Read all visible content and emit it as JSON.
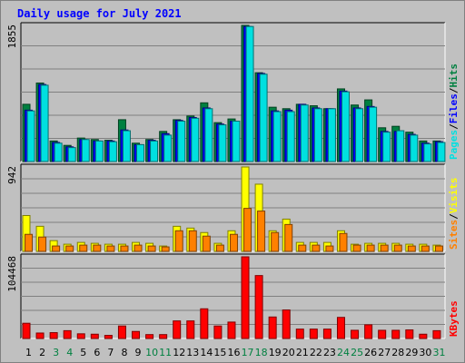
{
  "chart_data": {
    "title": "Daily usage for July 2021",
    "type": "bar",
    "days": [
      "1",
      "2",
      "3",
      "4",
      "5",
      "6",
      "7",
      "8",
      "9",
      "10",
      "11",
      "12",
      "13",
      "14",
      "15",
      "16",
      "17",
      "18",
      "19",
      "20",
      "21",
      "22",
      "23",
      "24",
      "25",
      "26",
      "27",
      "28",
      "29",
      "30",
      "31"
    ],
    "weekend_days": [
      "3",
      "4",
      "10",
      "11",
      "17",
      "18",
      "24",
      "25",
      "31"
    ],
    "panels": [
      {
        "id": "hits_files_pages",
        "ymax": 1855,
        "ymax_label": "1855",
        "legend": [
          "Pages",
          "/",
          "Files",
          "/",
          "Hits"
        ],
        "legend_colors": [
          "#00e0e0",
          "#000000",
          "#0000ff",
          "#000000",
          "#008040"
        ],
        "series": [
          {
            "name": "Hits",
            "color": "#008040",
            "values": [
              780,
              1070,
              280,
              220,
              320,
              300,
              290,
              570,
              250,
              300,
              410,
              570,
              620,
              800,
              530,
              580,
              1855,
              1210,
              740,
              720,
              780,
              760,
              720,
              990,
              770,
              840,
              460,
              480,
              400,
              280,
              280
            ]
          },
          {
            "name": "Files",
            "color": "#0000ff",
            "values": [
              700,
              1050,
              260,
              200,
              300,
              280,
              280,
              430,
              230,
              290,
              380,
              560,
              600,
              730,
              510,
              550,
              1840,
              1200,
              690,
              700,
              780,
              730,
              720,
              960,
              730,
              750,
              410,
              410,
              370,
              250,
              270
            ]
          },
          {
            "name": "Pages",
            "color": "#00e0e0",
            "values": [
              690,
              1040,
              250,
              190,
              300,
              280,
              270,
              420,
              230,
              280,
              360,
              550,
              590,
              720,
              500,
              550,
              1840,
              1190,
              680,
              680,
              770,
              720,
              720,
              950,
              720,
              740,
              400,
              420,
              360,
              240,
              260
            ]
          }
        ]
      },
      {
        "id": "visits_sites",
        "ymax": 942,
        "ymax_label": "942",
        "legend": [
          "Sites",
          "/",
          "Visits"
        ],
        "legend_colors": [
          "#ff8000",
          "#000000",
          "#ffff00"
        ],
        "series": [
          {
            "name": "Visits",
            "color": "#ffff00",
            "values": [
              400,
              280,
              120,
              80,
              100,
              90,
              80,
              80,
              100,
              90,
              60,
              280,
              260,
              210,
              90,
              230,
              942,
              750,
              230,
              360,
              100,
              100,
              100,
              230,
              80,
              90,
              90,
              90,
              80,
              80,
              70
            ]
          },
          {
            "name": "Sites",
            "color": "#ff8000",
            "values": [
              190,
              160,
              60,
              60,
              70,
              70,
              60,
              60,
              70,
              60,
              50,
              230,
              230,
              170,
              70,
              190,
              480,
              450,
              210,
              300,
              70,
              70,
              60,
              200,
              70,
              70,
              70,
              70,
              60,
              60,
              60
            ]
          }
        ]
      },
      {
        "id": "kbytes",
        "ymax": 104468,
        "ymax_label": "104468",
        "legend": [
          "KBytes"
        ],
        "legend_colors": [
          "#ff0000"
        ],
        "series": [
          {
            "name": "KBytes",
            "color": "#ff0000",
            "values": [
              19500,
              7000,
              7500,
              10000,
              6000,
              5500,
              4000,
              16000,
              9000,
              5000,
              5000,
              22500,
              22500,
              38000,
              16000,
              21000,
              104468,
              80500,
              27500,
              36500,
              12000,
              12000,
              12000,
              27000,
              10500,
              17500,
              10500,
              10500,
              11000,
              5500,
              10000
            ]
          }
        ]
      }
    ]
  }
}
